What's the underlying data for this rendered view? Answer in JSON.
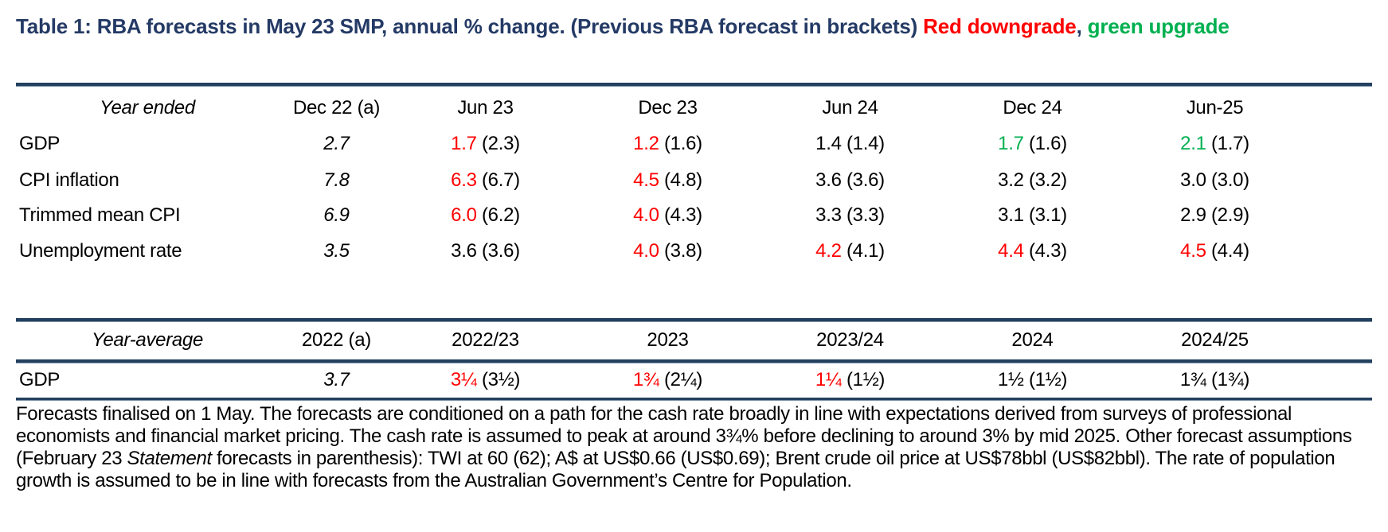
{
  "title": {
    "main": "Table 1: RBA forecasts in May 23 SMP, annual % change.  (Previous RBA forecast in brackets) ",
    "red_part": "Red downgrade",
    "comma": ",",
    "green_part": " green upgrade"
  },
  "colors": {
    "title": "#243a65",
    "downgrade": "#ff0000",
    "upgrade": "#00b050",
    "rule": "#24405f"
  },
  "year_ended": {
    "header_label": "Year ended",
    "columns": [
      "Dec 22 (a)",
      "Jun 23",
      "Dec 23",
      "Jun 24",
      "Dec 24",
      "Jun-25"
    ],
    "rows": [
      {
        "label": "GDP",
        "actual": "2.7",
        "forecasts": [
          {
            "value": "1.7",
            "prev": " (2.3)",
            "change": "down"
          },
          {
            "value": "1.2",
            "prev": " (1.6)",
            "change": "down"
          },
          {
            "value": "1.4",
            "prev": " (1.4)",
            "change": "same"
          },
          {
            "value": "1.7",
            "prev": " (1.6)",
            "change": "up"
          },
          {
            "value": "2.1",
            "prev": " (1.7)",
            "change": "up"
          }
        ]
      },
      {
        "label": "CPI inflation",
        "actual": "7.8",
        "forecasts": [
          {
            "value": "6.3",
            "prev": " (6.7)",
            "change": "down"
          },
          {
            "value": "4.5",
            "prev": " (4.8)",
            "change": "down"
          },
          {
            "value": "3.6",
            "prev": " (3.6)",
            "change": "same"
          },
          {
            "value": "3.2",
            "prev": " (3.2)",
            "change": "same"
          },
          {
            "value": "3.0",
            "prev": " (3.0)",
            "change": "same"
          }
        ]
      },
      {
        "label": "Trimmed mean CPI",
        "actual": "6.9",
        "forecasts": [
          {
            "value": "6.0",
            "prev": " (6.2)",
            "change": "down"
          },
          {
            "value": "4.0",
            "prev": " (4.3)",
            "change": "down"
          },
          {
            "value": "3.3",
            "prev": " (3.3)",
            "change": "same"
          },
          {
            "value": "3.1",
            "prev": " (3.1)",
            "change": "same"
          },
          {
            "value": "2.9",
            "prev": " (2.9)",
            "change": "same"
          }
        ]
      },
      {
        "label": "Unemployment rate",
        "actual": "3.5",
        "forecasts": [
          {
            "value": "3.6",
            "prev": " (3.6)",
            "change": "same"
          },
          {
            "value": "4.0",
            "prev": " (3.8)",
            "change": "down"
          },
          {
            "value": "4.2",
            "prev": " (4.1)",
            "change": "down"
          },
          {
            "value": "4.4",
            "prev": " (4.3)",
            "change": "down"
          },
          {
            "value": "4.5",
            "prev": " (4.4)",
            "change": "down"
          }
        ]
      }
    ]
  },
  "year_average": {
    "header_label": "Year-average",
    "columns": [
      "2022 (a)",
      "2022/23",
      "2023",
      "2023/24",
      "2024",
      "2024/25"
    ],
    "rows": [
      {
        "label": "GDP",
        "actual": "3.7",
        "forecasts": [
          {
            "value": "3¼",
            "prev": " (3½)",
            "change": "down"
          },
          {
            "value": "1¾",
            "prev": " (2¼)",
            "change": "down"
          },
          {
            "value": "1¼",
            "prev": " (1½)",
            "change": "down"
          },
          {
            "value": "1½",
            "prev": " (1½)",
            "change": "same"
          },
          {
            "value": "1¾",
            "prev": " (1¾)",
            "change": "same"
          }
        ]
      }
    ]
  },
  "notes": {
    "part1": "Forecasts finalised on 1 May. The forecasts are conditioned on a path for the cash rate broadly in line with expectations derived from surveys of professional economists and financial market pricing. The cash rate is assumed to peak at around 3¾% before declining to around 3% by mid 2025. Other forecast assumptions (February 23 ",
    "italic": "Statement",
    "part2": " forecasts in parenthesis): TWI at 60 (62); A$ at US$0.66 (US$0.69); Brent crude oil price at US$78bbl (US$82bbl). The rate of population growth is assumed to be in line with forecasts from the Australian Government’s Centre for Population."
  }
}
